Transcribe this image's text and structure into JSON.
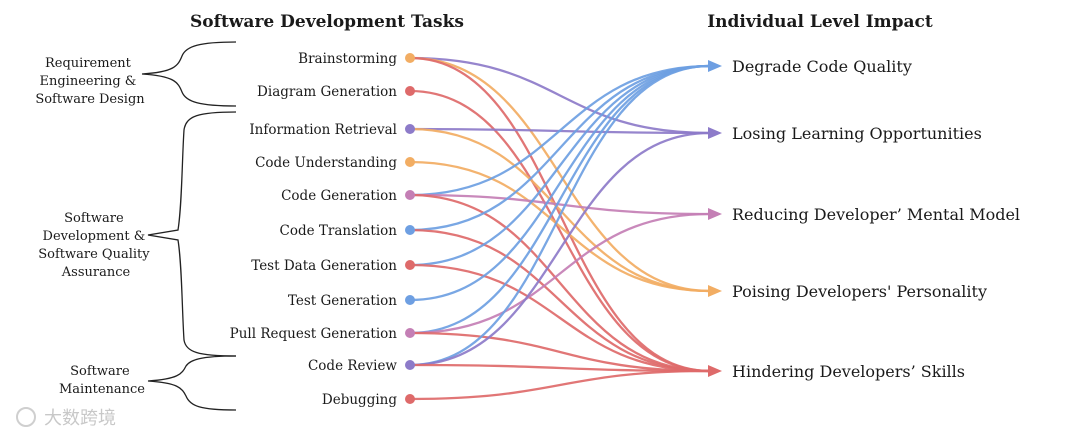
{
  "left_title": "Software Development Tasks",
  "right_title": "Individual Level Impact",
  "phases": [
    "Requirement Engineering & Software Design",
    "Software Development & Software Quality Assurance",
    "Software Maintenance"
  ],
  "tasks": [
    "Brainstorming",
    "Diagram Generation",
    "Information Retrieval",
    "Code Understanding",
    "Code Generation",
    "Code Translation",
    "Test Data Generation",
    "Test Generation",
    "Pull Request Generation",
    "Code Review",
    "Debugging"
  ],
  "impacts": [
    "Degrade Code Quality",
    "Losing Learning Opportunities",
    "Reducing Developer’ Mental Model",
    "Poising Developers' Personality",
    "Hindering Developers’ Skills"
  ],
  "watermark": "大数跨境",
  "colors": {
    "orange": "#f2ad63",
    "red": "#de6a6a",
    "purple": "#8d7bc9",
    "blue": "#6e9fe2",
    "pink": "#c47fb5"
  },
  "task_node_colors": [
    "orange",
    "red",
    "purple",
    "orange",
    "pink",
    "blue",
    "red",
    "blue",
    "pink",
    "purple",
    "red"
  ],
  "connections": [
    {
      "task": "Brainstorming",
      "impact": "Losing Learning Opportunities",
      "color": "purple"
    },
    {
      "task": "Brainstorming",
      "impact": "Poising Developers' Personality",
      "color": "orange"
    },
    {
      "task": "Brainstorming",
      "impact": "Hindering Developers’ Skills",
      "color": "red"
    },
    {
      "task": "Diagram Generation",
      "impact": "Hindering Developers’ Skills",
      "color": "red"
    },
    {
      "task": "Information Retrieval",
      "impact": "Losing Learning Opportunities",
      "color": "purple"
    },
    {
      "task": "Information Retrieval",
      "impact": "Poising Developers' Personality",
      "color": "orange"
    },
    {
      "task": "Code Understanding",
      "impact": "Poising Developers' Personality",
      "color": "orange"
    },
    {
      "task": "Code Generation",
      "impact": "Degrade Code Quality",
      "color": "blue"
    },
    {
      "task": "Code Generation",
      "impact": "Reducing Developer’ Mental Model",
      "color": "pink"
    },
    {
      "task": "Code Generation",
      "impact": "Hindering Developers’ Skills",
      "color": "red"
    },
    {
      "task": "Code Translation",
      "impact": "Degrade Code Quality",
      "color": "blue"
    },
    {
      "task": "Code Translation",
      "impact": "Hindering Developers’ Skills",
      "color": "red"
    },
    {
      "task": "Test Data Generation",
      "impact": "Degrade Code Quality",
      "color": "blue"
    },
    {
      "task": "Test Data Generation",
      "impact": "Hindering Developers’ Skills",
      "color": "red"
    },
    {
      "task": "Test Generation",
      "impact": "Degrade Code Quality",
      "color": "blue"
    },
    {
      "task": "Pull Request Generation",
      "impact": "Degrade Code Quality",
      "color": "blue"
    },
    {
      "task": "Pull Request Generation",
      "impact": "Reducing Developer’ Mental Model",
      "color": "pink"
    },
    {
      "task": "Pull Request Generation",
      "impact": "Hindering Developers’ Skills",
      "color": "red"
    },
    {
      "task": "Code Review",
      "impact": "Degrade Code Quality",
      "color": "blue"
    },
    {
      "task": "Code Review",
      "impact": "Losing Learning Opportunities",
      "color": "purple"
    },
    {
      "task": "Code Review",
      "impact": "Hindering Developers’ Skills",
      "color": "red"
    },
    {
      "task": "Debugging",
      "impact": "Hindering Developers’ Skills",
      "color": "red"
    }
  ]
}
